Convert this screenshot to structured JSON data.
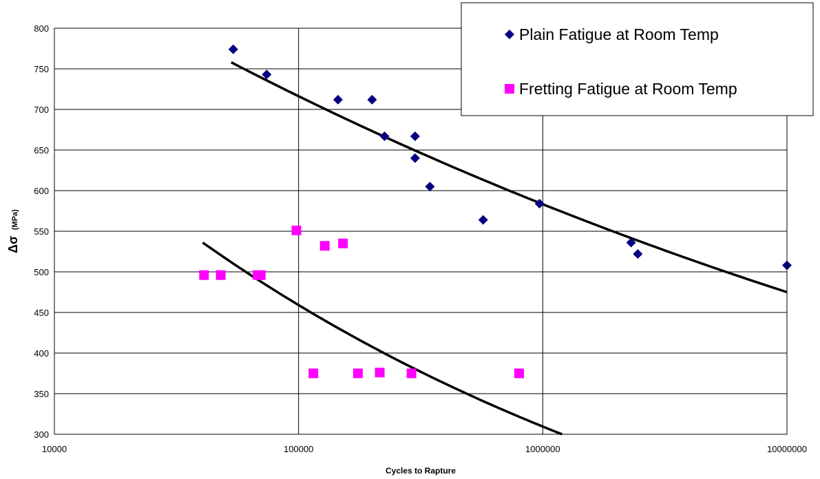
{
  "chart_data": {
    "type": "scatter",
    "xscale": "log",
    "xlim": [
      10000,
      10000000
    ],
    "ylim": [
      300,
      800
    ],
    "grid": true,
    "legend_position": "top-right",
    "xlabel": "Cycles to Rapture",
    "ylabel_main": "Δσ",
    "ylabel_unit": "(MPa)",
    "x_ticks": [
      10000,
      100000,
      1000000,
      10000000
    ],
    "x_tick_labels": [
      "10000",
      "100000",
      "1000000",
      "10000000"
    ],
    "y_ticks": [
      300,
      350,
      400,
      450,
      500,
      550,
      600,
      650,
      700,
      750,
      800
    ],
    "y_tick_labels": [
      "300",
      "350",
      "400",
      "450",
      "500",
      "550",
      "600",
      "650",
      "700",
      "750",
      "800"
    ],
    "series": [
      {
        "name": "Plain Fatigue at Room Temp",
        "marker": "diamond",
        "color": "#000080",
        "points": [
          [
            54000,
            774
          ],
          [
            74000,
            743
          ],
          [
            145000,
            712
          ],
          [
            200000,
            712
          ],
          [
            225000,
            667
          ],
          [
            300000,
            667
          ],
          [
            300000,
            640
          ],
          [
            345000,
            605
          ],
          [
            570000,
            564
          ],
          [
            970000,
            584
          ],
          [
            2300000,
            536
          ],
          [
            2450000,
            522
          ],
          [
            10000000,
            508
          ]
        ]
      },
      {
        "name": "Fretting Fatigue at Room Temp",
        "marker": "square",
        "color": "#FF00FF",
        "points": [
          [
            41000,
            496
          ],
          [
            48000,
            496
          ],
          [
            68000,
            496
          ],
          [
            70000,
            496
          ],
          [
            98000,
            551
          ],
          [
            128000,
            532
          ],
          [
            152000,
            535
          ],
          [
            115000,
            375
          ],
          [
            175000,
            375
          ],
          [
            215000,
            376
          ],
          [
            290000,
            375
          ],
          [
            800000,
            375
          ]
        ]
      }
    ],
    "trendlines": [
      {
        "for_series": "Plain Fatigue at Room Temp",
        "color": "#000000",
        "points": [
          [
            53000,
            758
          ],
          [
            10000000,
            475
          ]
        ]
      },
      {
        "for_series": "Fretting Fatigue at Room Temp",
        "color": "#000000",
        "points": [
          [
            40500,
            536
          ],
          [
            1200000,
            300
          ]
        ]
      }
    ]
  }
}
